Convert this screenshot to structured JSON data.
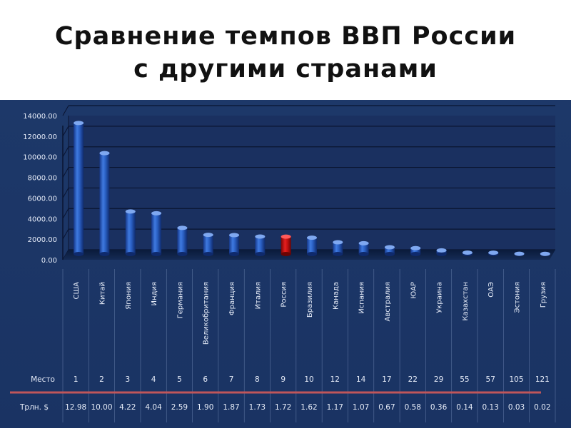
{
  "slide": {
    "title_line1": "Сравнение темпов ВВП России",
    "title_line2": "с другими странами"
  },
  "chart_data": {
    "type": "bar",
    "title": "",
    "categories": [
      "США",
      "Китай",
      "Япония",
      "Индия",
      "Германия",
      "Великобритания",
      "Франция",
      "Италия",
      "Россия",
      "Бразилия",
      "Канада",
      "Испания",
      "Австралия",
      "ЮАР",
      "Украина",
      "Казахстан",
      "ОАЭ",
      "Эстония",
      "Грузия"
    ],
    "values": [
      12980,
      10000,
      4220,
      4040,
      2590,
      1900,
      1870,
      1730,
      1720,
      1620,
      1170,
      1070,
      670,
      580,
      360,
      140,
      130,
      30,
      20
    ],
    "y_ticks": [
      "0.00",
      "2000.00",
      "4000.00",
      "6000.00",
      "8000.00",
      "10000.00",
      "12000.00",
      "14000.00"
    ],
    "ylim": [
      0,
      14000
    ],
    "grid": true,
    "highlight_category": "Россия",
    "colors": {
      "bar": "#2f62c4",
      "highlight": "#cc1010",
      "background": "#1c3666",
      "separator": "#c0565a"
    },
    "table": {
      "rank_label": "Место",
      "ranks": [
        "1",
        "2",
        "3",
        "4",
        "5",
        "6",
        "7",
        "8",
        "9",
        "10",
        "12",
        "14",
        "17",
        "22",
        "29",
        "55",
        "57",
        "105",
        "121"
      ],
      "gdp_label": "Трлн. $",
      "gdp": [
        "12.98",
        "10.00",
        "4.22",
        "4.04",
        "2.59",
        "1.90",
        "1.87",
        "1.73",
        "1.72",
        "1.62",
        "1.17",
        "1.07",
        "0.67",
        "0.58",
        "0.36",
        "0.14",
        "0.13",
        "0.03",
        "0.02"
      ]
    }
  }
}
